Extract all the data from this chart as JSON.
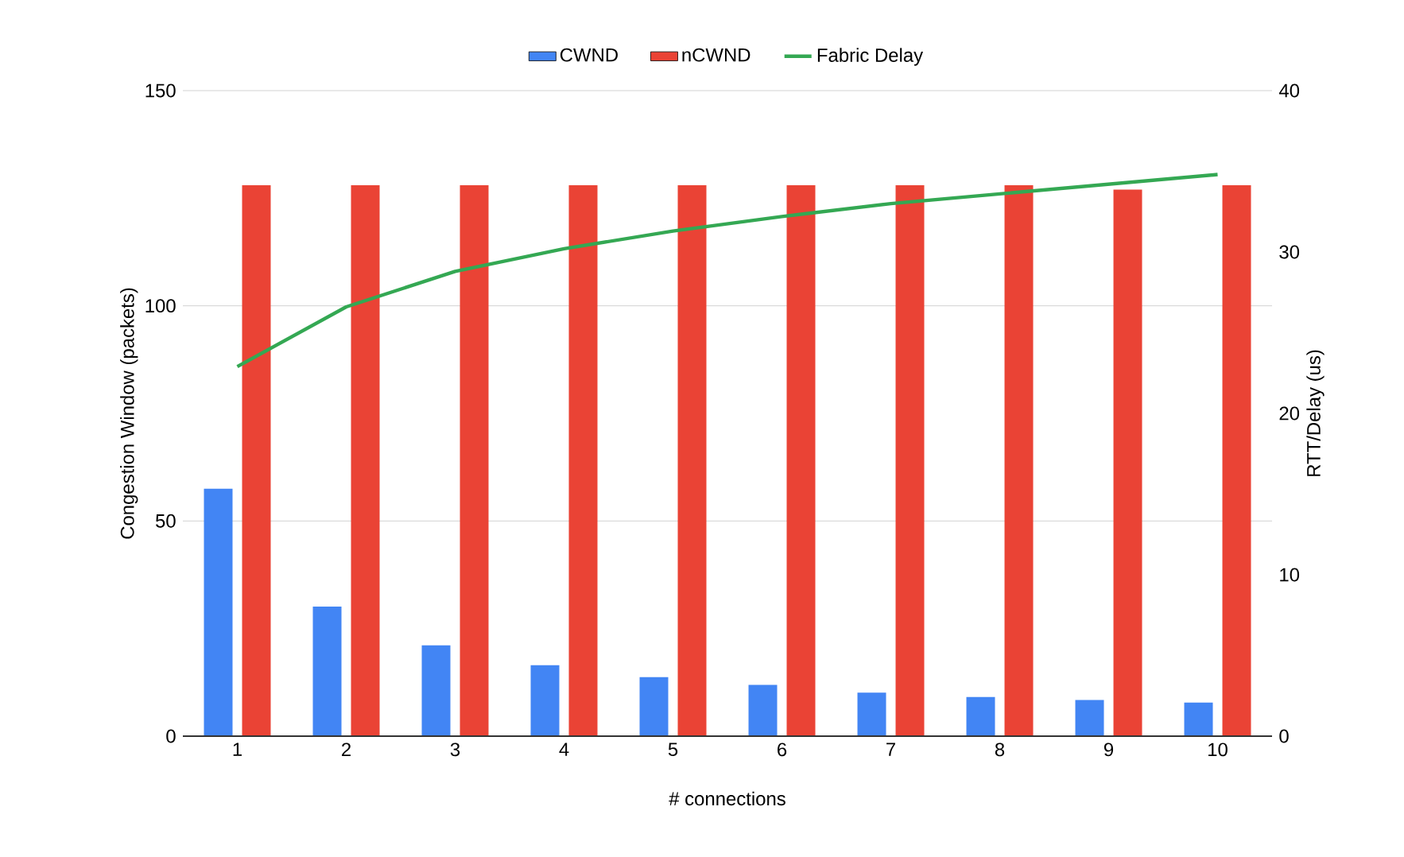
{
  "chart_data": {
    "type": "bar",
    "categories": [
      "1",
      "2",
      "3",
      "4",
      "5",
      "6",
      "7",
      "8",
      "9",
      "10"
    ],
    "xlabel": "# connections",
    "ylabel": "Congestion Window (packets)",
    "y2label": "RTT/Delay (us)",
    "series": [
      {
        "name": "CWND",
        "color": "#4285f4",
        "values": [
          57.5,
          30.1,
          21.1,
          16.5,
          13.7,
          11.9,
          10.1,
          9.1,
          8.4,
          7.8
        ]
      },
      {
        "name": "nCWND",
        "color": "#ea4335",
        "values": [
          128,
          128,
          128,
          128,
          128,
          128,
          128,
          128,
          127,
          128
        ]
      },
      {
        "name": "Fabric Delay",
        "type": "line",
        "axis": "y2",
        "color": "#34a853",
        "values": [
          22.9,
          26.6,
          28.8,
          30.2,
          31.3,
          32.2,
          33.0,
          33.6,
          34.2,
          34.8
        ]
      }
    ],
    "ylim": [
      0,
      150
    ],
    "yticks": [
      0,
      50,
      100,
      150
    ],
    "y2lim": [
      0,
      40
    ],
    "y2ticks": [
      0,
      10,
      20,
      30,
      40
    ],
    "grid": "y",
    "legend": "top"
  }
}
